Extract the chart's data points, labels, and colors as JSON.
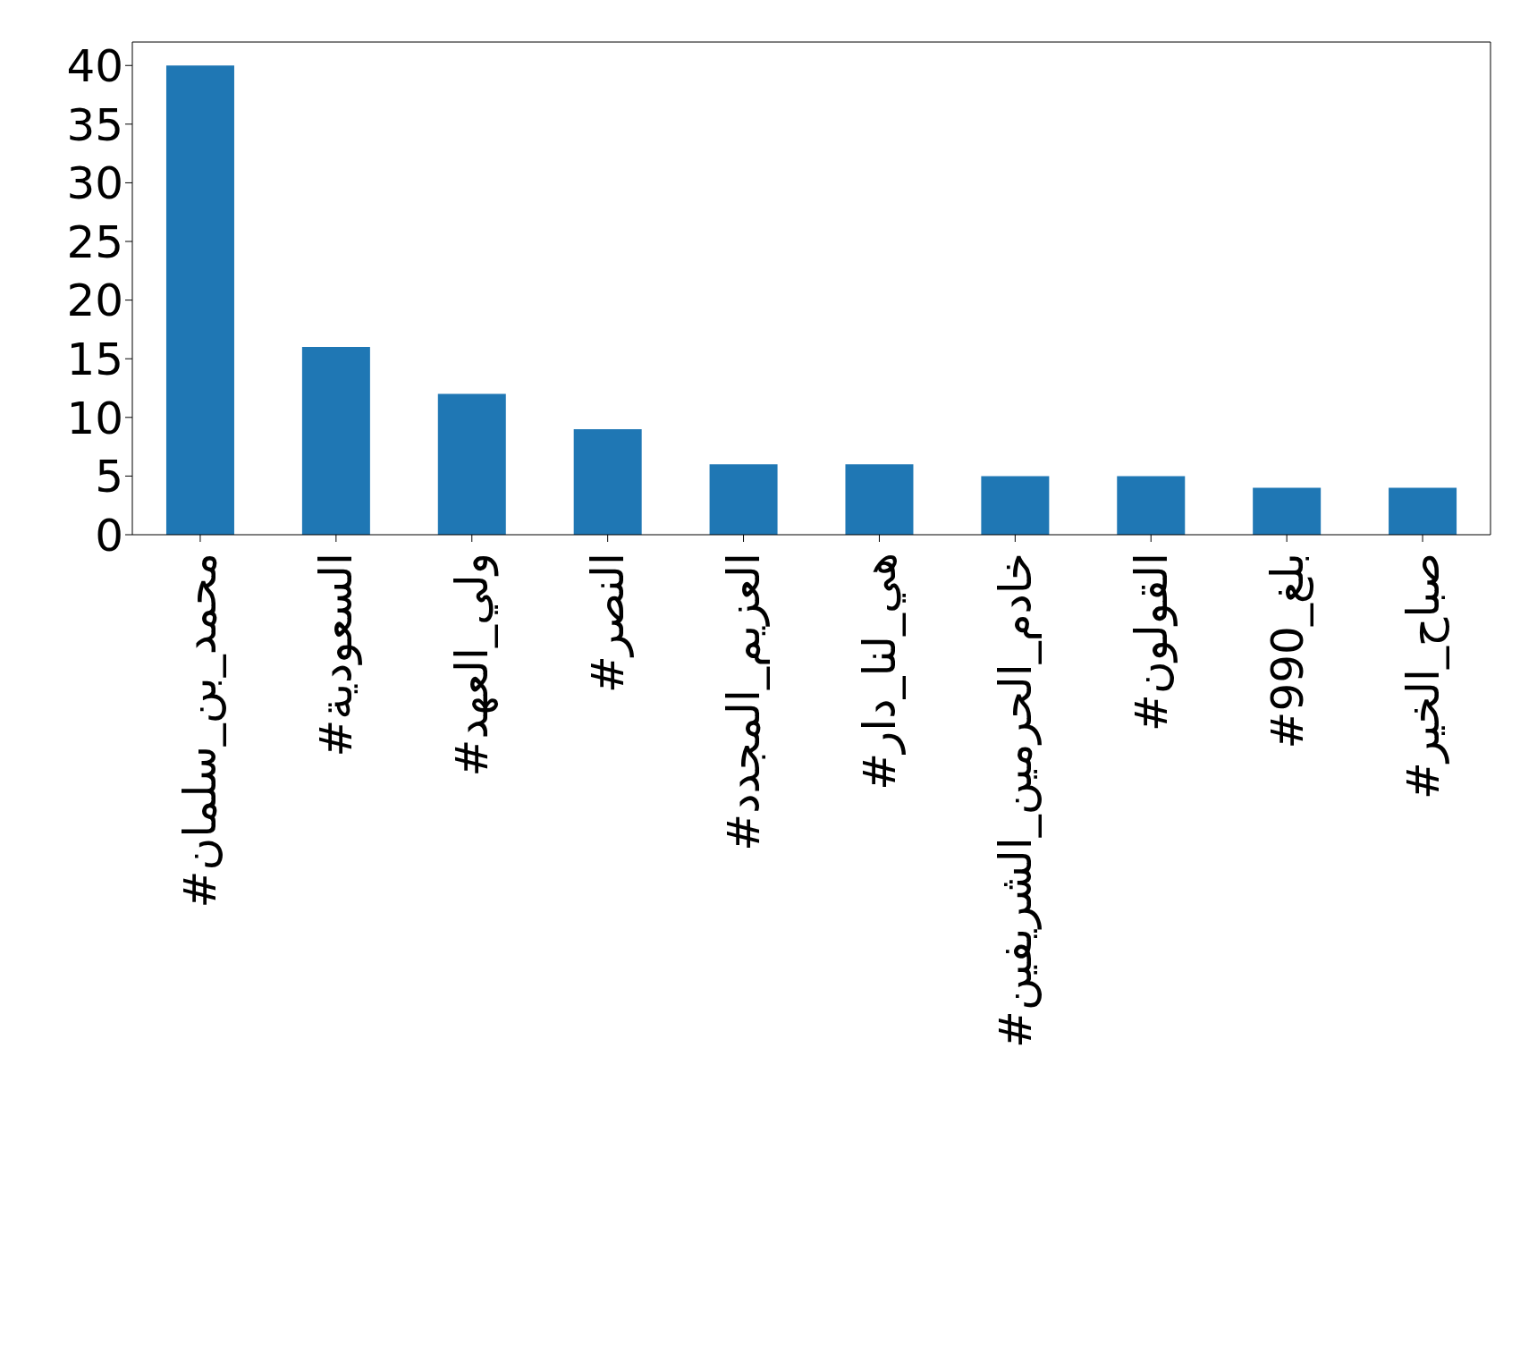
{
  "chart_data": {
    "type": "bar",
    "categories": [
      "#محمد_بن_سلمان",
      "#السعودية",
      "#ولي_العهد",
      "#النصر",
      "#العزيم_المجدد",
      "#هي_لنا_دار",
      "#خادم_الحرمين_الشريفين",
      "#القولون",
      "#بلغ_990",
      "#صباح_الخير"
    ],
    "values": [
      40,
      16,
      12,
      9,
      6,
      6,
      5,
      5,
      4,
      4
    ],
    "color": "#1f77b4",
    "ylim": [
      0,
      42
    ],
    "yticks": [
      0,
      5,
      10,
      15,
      20,
      25,
      30,
      35,
      40
    ],
    "grid": false
  }
}
